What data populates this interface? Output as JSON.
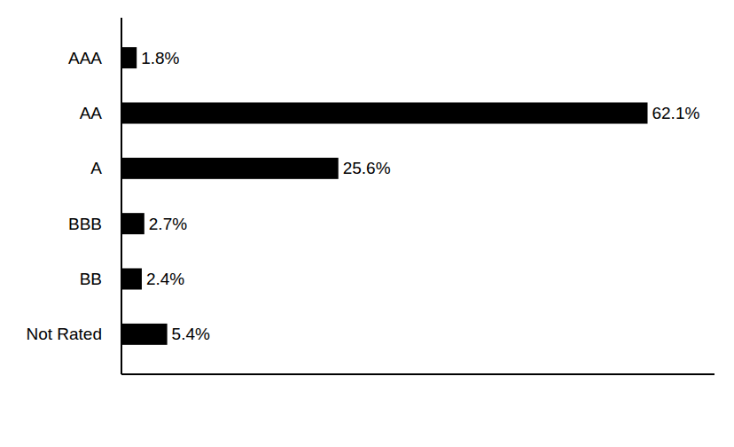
{
  "chart_data": {
    "type": "bar",
    "orientation": "horizontal",
    "categories": [
      "AAA",
      "AA",
      "A",
      "BBB",
      "BB",
      "Not Rated"
    ],
    "values": [
      1.8,
      62.1,
      25.6,
      2.7,
      2.4,
      5.4
    ],
    "value_labels": [
      "1.8%",
      "62.1%",
      "25.6%",
      "2.7%",
      "2.4%",
      "5.4%"
    ],
    "color": "#000000",
    "xlim": [
      0,
      70
    ],
    "data_labels": true,
    "tick_labels": "y",
    "grid": false
  }
}
